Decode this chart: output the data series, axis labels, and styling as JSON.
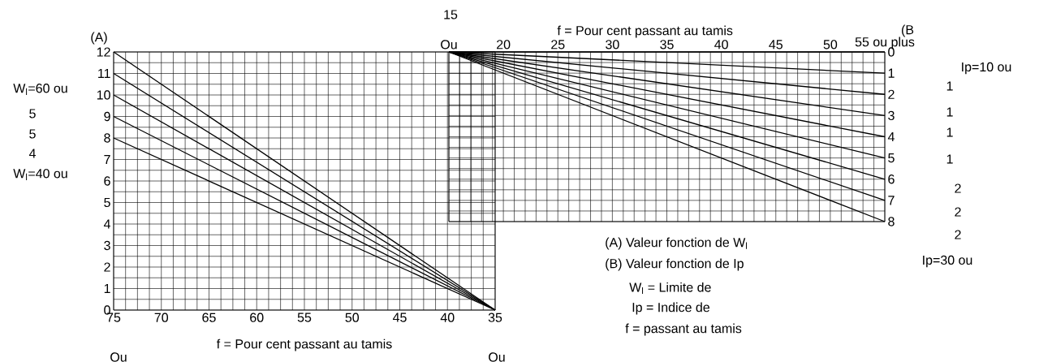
{
  "chart_data": [
    {
      "type": "line",
      "xlabel": "f = Pour cent passant au tamis",
      "xlim": [
        75,
        35
      ],
      "ylim": [
        0,
        12
      ],
      "xticks": [
        75,
        70,
        65,
        60,
        55,
        50,
        45,
        40,
        35
      ],
      "yticks": [
        0,
        1,
        2,
        3,
        4,
        5,
        6,
        7,
        8,
        9,
        10,
        11,
        12
      ],
      "grid": true,
      "series": [
        {
          "color": "#000000",
          "x": [
            75,
            35
          ],
          "values": [
            12,
            0
          ]
        },
        {
          "color": "#000000",
          "x": [
            75,
            35
          ],
          "values": [
            11,
            0
          ]
        },
        {
          "color": "#000000",
          "x": [
            75,
            35
          ],
          "values": [
            10,
            0
          ]
        },
        {
          "color": "#000000",
          "x": [
            75,
            35
          ],
          "values": [
            9,
            0
          ]
        },
        {
          "color": "#000000",
          "x": [
            75,
            35
          ],
          "values": [
            8,
            0
          ]
        }
      ],
      "annotations": [
        "(A)",
        "W$_{l}$=60 ou",
        "5",
        "5",
        "4",
        "W$_{l}$=40 ou",
        "Ou",
        "Ou"
      ]
    },
    {
      "type": "line",
      "xlabel": "f = Pour cent passant au tamis",
      "xlim": [
        15,
        55
      ],
      "ylim": [
        8,
        0
      ],
      "xticks": [
        {
          "value": 15,
          "label": "Ou"
        },
        20,
        25,
        30,
        35,
        40,
        45,
        50,
        {
          "value": 55,
          "label": "55 ou plus"
        }
      ],
      "yticks": [
        0,
        1,
        2,
        3,
        4,
        5,
        6,
        7,
        8
      ],
      "grid": true,
      "series": [
        {
          "color": "#000000",
          "x": [
            15,
            55
          ],
          "values": [
            0,
            0
          ]
        },
        {
          "color": "#000000",
          "x": [
            15,
            55
          ],
          "values": [
            0,
            1
          ]
        },
        {
          "color": "#000000",
          "x": [
            15,
            55
          ],
          "values": [
            0,
            2
          ]
        },
        {
          "color": "#000000",
          "x": [
            15,
            55
          ],
          "values": [
            0,
            3
          ]
        },
        {
          "color": "#000000",
          "x": [
            15,
            55
          ],
          "values": [
            0,
            4
          ]
        },
        {
          "color": "#000000",
          "x": [
            15,
            55
          ],
          "values": [
            0,
            5
          ]
        },
        {
          "color": "#000000",
          "x": [
            15,
            55
          ],
          "values": [
            0,
            6
          ]
        },
        {
          "color": "#000000",
          "x": [
            15,
            55
          ],
          "values": [
            0,
            7
          ]
        },
        {
          "color": "#000000",
          "x": [
            15,
            55
          ],
          "values": [
            0,
            8
          ]
        }
      ],
      "annotations": [
        "15",
        "(B",
        "Ip=10 ou",
        "1",
        "1",
        "1",
        "1",
        "2",
        "2",
        "2",
        "Ip=30 ou",
        "(A) Valeur fonction de W$_{l}$",
        "(B) Valeur fonction de Ip",
        "W$_{l}$ = Limite de",
        "Ip = Indice de",
        "f = passant au tamis"
      ]
    }
  ]
}
